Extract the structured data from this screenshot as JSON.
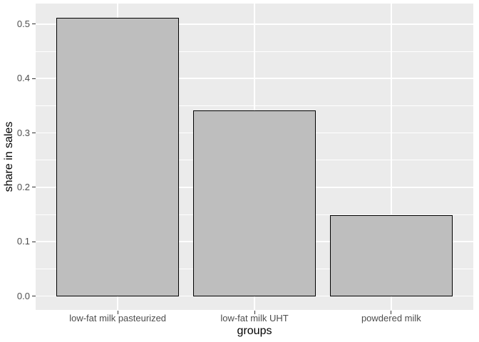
{
  "chart_data": {
    "type": "bar",
    "title": "",
    "categories": [
      "low-fat milk pasteurized",
      "low-fat milk UHT",
      "powdered milk"
    ],
    "values": [
      0.512,
      0.341,
      0.149
    ],
    "xlabel": "groups",
    "ylabel": "share in sales",
    "ylim": [
      0,
      0.54
    ],
    "y_major_ticks": [
      0,
      0.1,
      0.2,
      0.3,
      0.4,
      0.5
    ],
    "y_tick_labels": [
      "0.0",
      "0.1",
      "0.2",
      "0.3",
      "0.4",
      "0.5"
    ],
    "y_minor_ticks": [
      0.05,
      0.15,
      0.25,
      0.35,
      0.45
    ],
    "grid": true,
    "legend_position": "none",
    "style": {
      "page_bg": "#FFFFFF",
      "panel_bg": "#EBEBEB",
      "grid_color": "#FFFFFF",
      "bar_fill": "#BEBEBE",
      "bar_stroke": "#000000",
      "tick_label_color": "#4D4D4D",
      "tick_mark_color": "#333333",
      "axis_title_color": "#000000"
    }
  }
}
